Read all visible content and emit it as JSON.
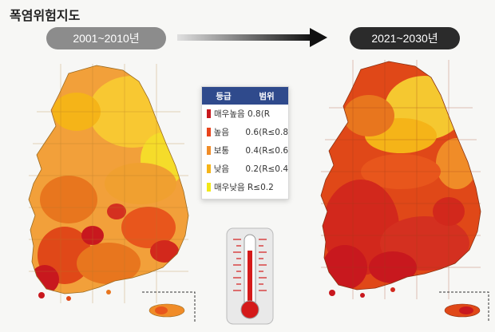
{
  "title": "폭염위험지도",
  "periods": [
    {
      "label": "2001~2010년",
      "pill_color": "#8c8c8c"
    },
    {
      "label": "2021~2030년",
      "pill_color": "#2b2b2b"
    }
  ],
  "legend": {
    "header": [
      "등급",
      "범위"
    ],
    "header_color": "#2f4a8c",
    "rows": [
      {
        "label": "매우높음",
        "range": "0.8(R",
        "color": "#c8181e"
      },
      {
        "label": "높음",
        "range": "0.6(R≤0.8",
        "color": "#e8431c"
      },
      {
        "label": "보통",
        "range": "0.4(R≤0.6",
        "color": "#f08c28"
      },
      {
        "label": "낮음",
        "range": "0.2(R≤0.4",
        "color": "#f5b418"
      },
      {
        "label": "매우낮음",
        "range": "R≤0.2",
        "color": "#f2e818"
      }
    ]
  },
  "icons": {
    "arrow": "right-arrow-icon",
    "thermometer": "thermometer-icon"
  }
}
